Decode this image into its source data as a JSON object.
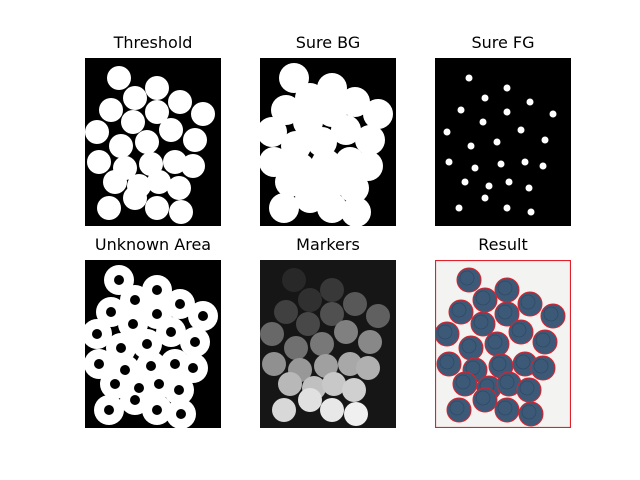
{
  "figure": {
    "panels": [
      {
        "key": "threshold",
        "title": "Threshold"
      },
      {
        "key": "sure_bg",
        "title": "Sure BG"
      },
      {
        "key": "sure_fg",
        "title": "Sure FG"
      },
      {
        "key": "unknown",
        "title": "Unknown Area"
      },
      {
        "key": "markers",
        "title": "Markers"
      },
      {
        "key": "result",
        "title": "Result"
      }
    ]
  },
  "colors": {
    "black": "#000000",
    "white": "#ffffff",
    "coin_fill": "#3c5a78",
    "coin_edge": "#2a4058",
    "boundary": "#e0202a",
    "result_bg": "#f3f3f1",
    "markers_bg": "#161616"
  }
}
